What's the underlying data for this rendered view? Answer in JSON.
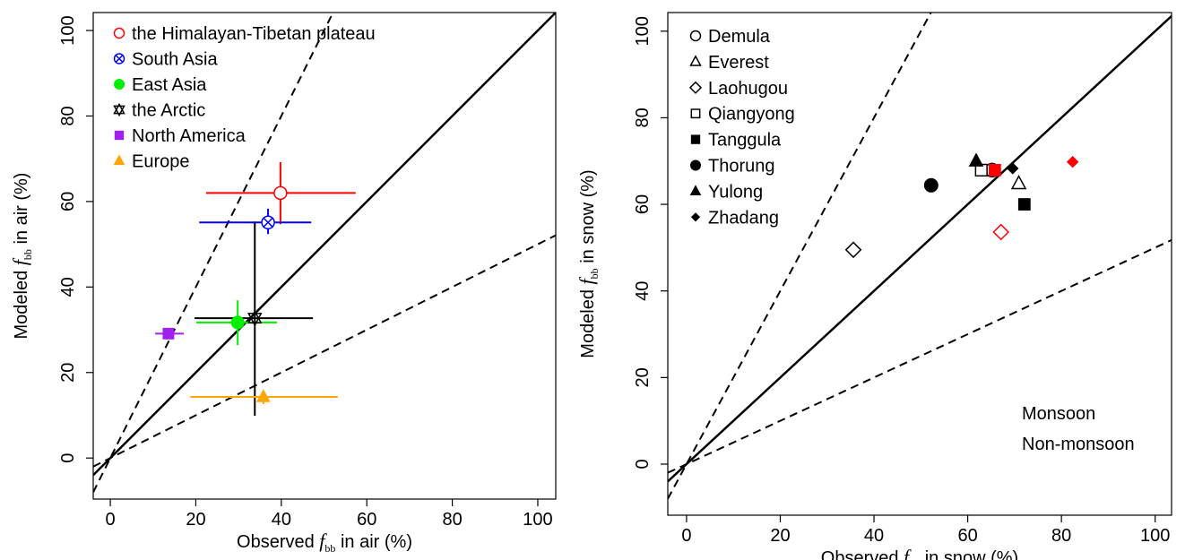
{
  "chart_data": [
    {
      "type": "scatter",
      "xlabel": [
        "Observed ",
        "f",
        "bb",
        " in air (%)"
      ],
      "ylabel": [
        "Modeled ",
        "f",
        "bb",
        " in air (%)"
      ],
      "xlim": [
        -4,
        104.2
      ],
      "ylim": [
        -9.6,
        104.2
      ],
      "xticks": [
        0,
        20,
        40,
        60,
        80,
        100
      ],
      "yticks": [
        0,
        20,
        40,
        60,
        80,
        100
      ],
      "reference_lines": [
        {
          "slope": 1,
          "style": "solid"
        },
        {
          "slope": 2,
          "style": "dashed"
        },
        {
          "slope": 0.5,
          "style": "dashed"
        }
      ],
      "legend": "top-left",
      "series": [
        {
          "name": "the Himalayan-Tibetan plateau",
          "color": "#ff0000",
          "marker": "circle-open",
          "x": [
            39.8
          ],
          "y": [
            62
          ],
          "xmin": [
            22.4
          ],
          "xmax": [
            57.4
          ],
          "ymin": [
            54.7
          ],
          "ymax": [
            69.2
          ]
        },
        {
          "name": "South Asia",
          "color": "#0000ff",
          "marker": "circled-x",
          "x": [
            36.9
          ],
          "y": [
            55.1
          ],
          "xmin": [
            20.8
          ],
          "xmax": [
            47
          ],
          "ymin": [
            52.4
          ],
          "ymax": [
            58.3
          ]
        },
        {
          "name": "East Asia",
          "color": "#00ee00",
          "marker": "circle",
          "x": [
            29.8
          ],
          "y": [
            31.7
          ],
          "xmin": [
            20.1
          ],
          "xmax": [
            39
          ],
          "ymin": [
            26.4
          ],
          "ymax": [
            36.9
          ]
        },
        {
          "name": "the Arctic",
          "color": "#000000",
          "marker": "star",
          "x": [
            33.8
          ],
          "y": [
            32.7
          ],
          "xmin": [
            19.7
          ],
          "xmax": [
            47.4
          ],
          "ymin": [
            9.9
          ],
          "ymax": [
            55.3
          ]
        },
        {
          "name": "North America",
          "color": "#a020f0",
          "marker": "square",
          "x": [
            13.6
          ],
          "y": [
            29.1
          ],
          "xmin": [
            10.5
          ],
          "xmax": [
            17.2
          ],
          "ymin": [
            29.1
          ],
          "ymax": [
            29.1
          ]
        },
        {
          "name": "Europe",
          "color": "#ffa500",
          "marker": "triangle",
          "x": [
            35.8
          ],
          "y": [
            14.3
          ],
          "xmin": [
            18.7
          ],
          "xmax": [
            53.2
          ],
          "ymin": [
            12.6
          ],
          "ymax": [
            15.7
          ]
        }
      ]
    },
    {
      "type": "scatter",
      "xlabel": [
        "Observed  ",
        "f",
        "bb",
        " in snow (%)"
      ],
      "ylabel": [
        "Modeled  ",
        "f",
        "bb",
        " in snow (%)"
      ],
      "xlim": [
        -4,
        103.5
      ],
      "ylim": [
        -11.8,
        104.3
      ],
      "xticks": [
        0,
        20,
        40,
        60,
        80,
        100
      ],
      "yticks": [
        0,
        20,
        40,
        60,
        80,
        100
      ],
      "reference_lines": [
        {
          "slope": 1,
          "style": "solid"
        },
        {
          "slope": 2,
          "style": "dashed"
        },
        {
          "slope": 0.5,
          "style": "dashed"
        }
      ],
      "legend": "top-left",
      "series": [
        {
          "name": "Demula",
          "marker": "circle-open",
          "x": [
            65.2
          ],
          "y": [
            67.9
          ],
          "colors": [
            "#000000"
          ]
        },
        {
          "name": "Everest",
          "marker": "triangle-open",
          "x": [
            70.9
          ],
          "y": [
            64.8
          ],
          "colors": [
            "#000000"
          ]
        },
        {
          "name": "Laohugou",
          "marker": "diamond-open",
          "x": [
            35.6,
            67.1
          ],
          "y": [
            49.5,
            53.6
          ],
          "colors": [
            "#000000",
            "#ff0000"
          ]
        },
        {
          "name": "Qiangyong",
          "marker": "square-open",
          "x": [
            62.9
          ],
          "y": [
            67.9
          ],
          "colors": [
            "#000000"
          ]
        },
        {
          "name": "Tanggula",
          "marker": "square",
          "x": [
            72.1,
            65.8
          ],
          "y": [
            60,
            67.9
          ],
          "colors": [
            "#000000",
            "#ff0000"
          ]
        },
        {
          "name": "Thorung",
          "marker": "circle",
          "x": [
            52.2
          ],
          "y": [
            64.4
          ],
          "colors": [
            "#000000"
          ]
        },
        {
          "name": "Yulong",
          "marker": "triangle",
          "x": [
            61.8
          ],
          "y": [
            70
          ],
          "colors": [
            "#000000"
          ]
        },
        {
          "name": "Zhadang",
          "marker": "diamond",
          "x": [
            69.6,
            82.4
          ],
          "y": [
            68.3,
            69.8
          ],
          "colors": [
            "#000000",
            "#ff0000"
          ]
        }
      ],
      "annotations": [
        {
          "text": "Monsoon",
          "color": "#ff0000"
        },
        {
          "text": "Non-monsoon",
          "color": "#000000"
        }
      ]
    }
  ]
}
